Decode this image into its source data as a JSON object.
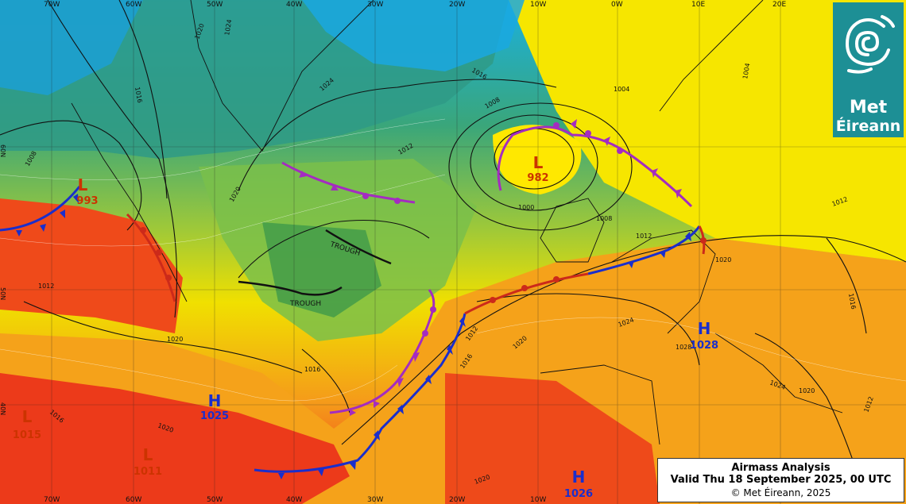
{
  "title": "Airmass Analysis",
  "valid_time": "Valid Thu 18 September 2025, 00 UTC",
  "copyright": "© Met Éireann, 2025",
  "logo": {
    "line1": "Met",
    "line2": "Éireann",
    "icon": "spiral-swirl-icon"
  },
  "colors": {
    "brand_teal": "#1d8f95",
    "cold_front": "#1a2ecc",
    "occluded_front": "#a42cc0",
    "warm_front": "#d0281a",
    "high_label": "#1a2ecc",
    "low_label": "#cc3300"
  },
  "longitude_labels_top": [
    "70W",
    "60W",
    "50W",
    "40W",
    "30W",
    "20W",
    "10W",
    "0W",
    "10E",
    "20E"
  ],
  "longitude_labels_bottom": [
    "70W",
    "60W",
    "50W",
    "40W",
    "30W",
    "20W",
    "10W"
  ],
  "latitude_labels": [
    "60N",
    "50N",
    "40N"
  ],
  "pressure_centres": [
    {
      "type": "L",
      "value": "982"
    },
    {
      "type": "L",
      "value": "993"
    },
    {
      "type": "L",
      "value": "1015"
    },
    {
      "type": "L",
      "value": "1011"
    },
    {
      "type": "H",
      "value": "1025"
    },
    {
      "type": "H",
      "value": "1028"
    },
    {
      "type": "H",
      "value": "1026"
    }
  ],
  "isobar_labels": [
    "1016",
    "1020",
    "1024",
    "1008",
    "1012",
    "1004",
    "1000",
    "1016",
    "1020",
    "1012",
    "1008",
    "1012",
    "1016",
    "1020",
    "1024",
    "1028",
    "1012",
    "1016",
    "1020",
    "1024",
    "1008",
    "1004",
    "1016",
    "1020",
    "1012",
    "1020",
    "1016",
    "1020",
    "1024",
    "1020",
    "1012"
  ],
  "annotations": [
    "TROUGH",
    "TROUGH"
  ]
}
